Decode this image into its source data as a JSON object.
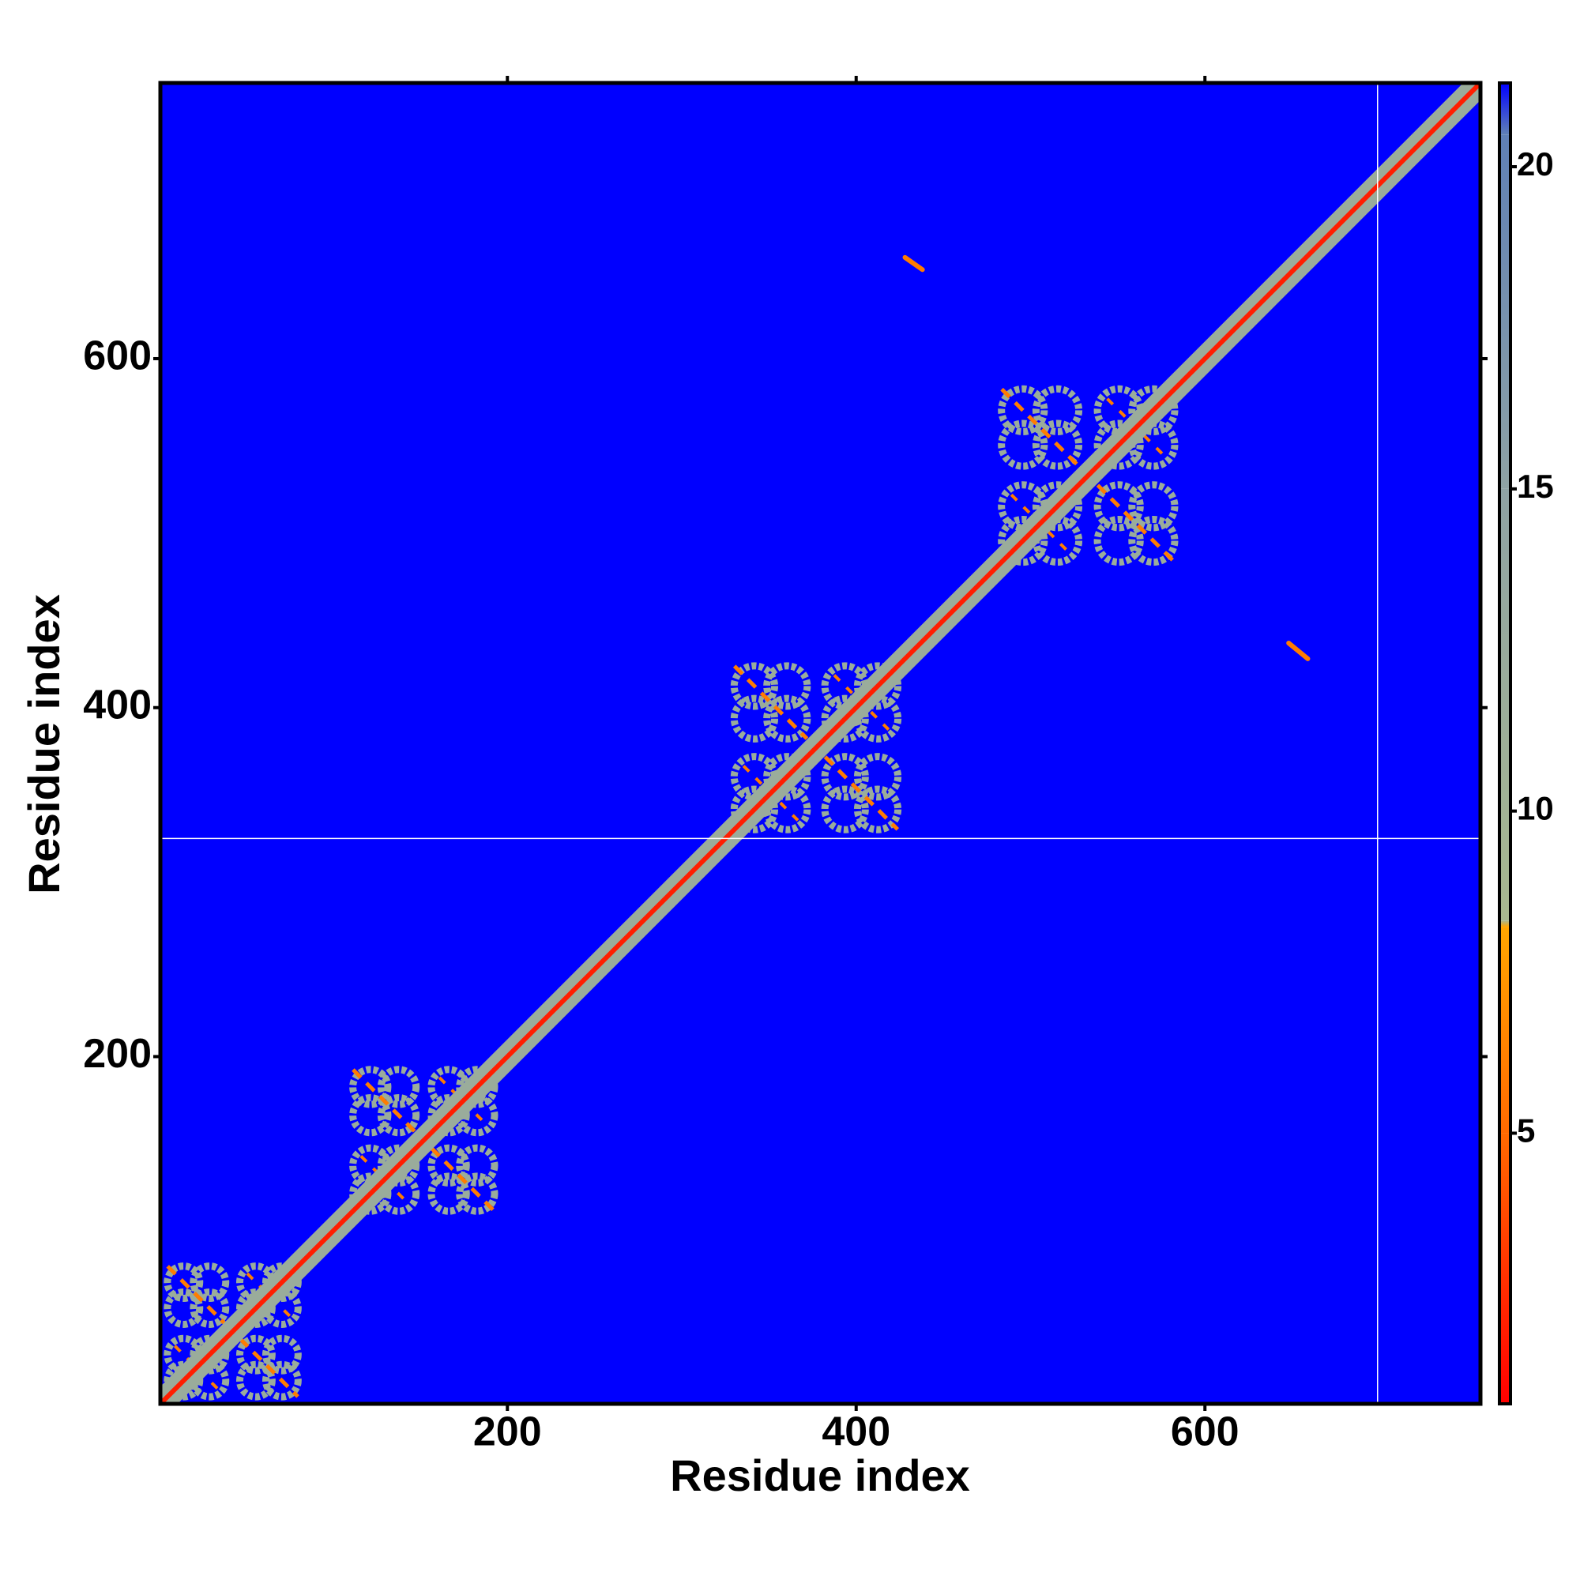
{
  "chart_data": {
    "type": "heatmap",
    "xlabel": "Residue index",
    "ylabel": "Residue index",
    "xlim": [
      1,
      758
    ],
    "ylim": [
      1,
      758
    ],
    "xticks": [
      200,
      400,
      600
    ],
    "yticks": [
      200,
      400,
      600
    ],
    "clim": [
      0.8,
      21.3
    ],
    "cticks": [
      5,
      10,
      15,
      20
    ],
    "colorscale": [
      {
        "value": 0.8,
        "color": "#ff0000"
      },
      {
        "value": 5,
        "color": "#ff6a00"
      },
      {
        "value": 8.2,
        "color": "#ffa500"
      },
      {
        "value": 8.3,
        "color": "#a8b890"
      },
      {
        "value": 15,
        "color": "#8fa2a4"
      },
      {
        "value": 20.5,
        "color": "#5f80b6"
      },
      {
        "value": 21.3,
        "color": "#0000ff"
      }
    ],
    "background_value": 21.3,
    "diagonal": {
      "start": 1,
      "end": 758,
      "value": 2,
      "band_value": 12,
      "band_width": 7
    },
    "domains": [
      {
        "start": 1,
        "end": 84,
        "value": 12,
        "contact_value": 6
      },
      {
        "start": 107,
        "end": 197,
        "value": 12,
        "contact_value": 6
      },
      {
        "start": 325,
        "end": 429,
        "value": 12,
        "contact_value": 6
      },
      {
        "start": 478,
        "end": 588,
        "value": 12,
        "contact_value": 6
      }
    ],
    "contacts": [
      {
        "x": [
          428,
          438
        ],
        "y": [
          658,
          651
        ],
        "value": 6
      },
      {
        "x": [
          648,
          659
        ],
        "y": [
          437,
          428
        ],
        "value": 6
      }
    ],
    "gaps": {
      "x": [
        699
      ],
      "y": [
        325
      ]
    }
  }
}
